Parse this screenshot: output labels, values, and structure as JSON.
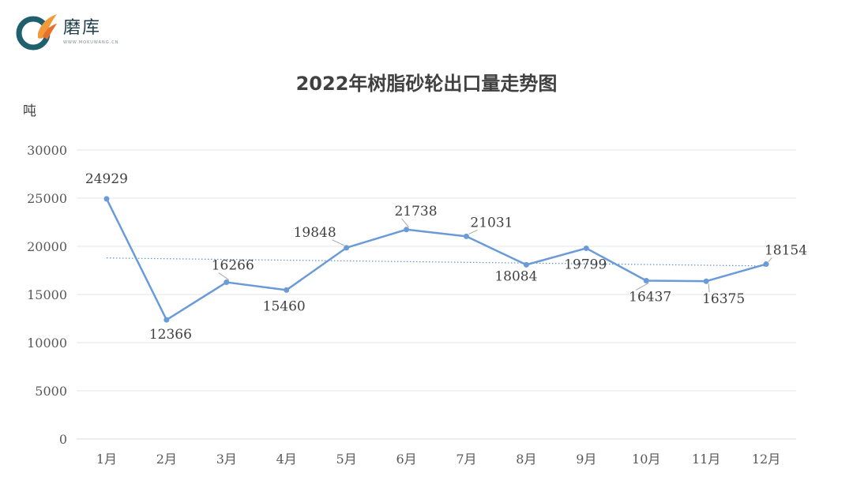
{
  "logo": {
    "name": "磨库",
    "domain": "WWW.MOKUWANG.CN",
    "colors": {
      "teal": "#1f5f6e",
      "orange": "#f29a3a"
    }
  },
  "chart_data": {
    "type": "line",
    "title": "2022年树脂砂轮出口量走势图",
    "ylabel": "吨",
    "xlabel": "",
    "categories": [
      "1月",
      "2月",
      "3月",
      "4月",
      "5月",
      "6月",
      "7月",
      "8月",
      "9月",
      "10月",
      "11月",
      "12月"
    ],
    "series": [
      {
        "values": [
          24929,
          12366,
          16266,
          15460,
          19848,
          21738,
          21031,
          18084,
          19799,
          16437,
          16375,
          18154
        ],
        "color": "#6a9bd8"
      }
    ],
    "trendline": {
      "type": "linear",
      "style": "dotted",
      "color": "#5b8fd0"
    },
    "ylim": [
      0,
      30000
    ],
    "yticks": [
      "0",
      "5000",
      "10000",
      "15000",
      "20000",
      "25000",
      "30000"
    ],
    "grid": true,
    "legend": "none"
  }
}
